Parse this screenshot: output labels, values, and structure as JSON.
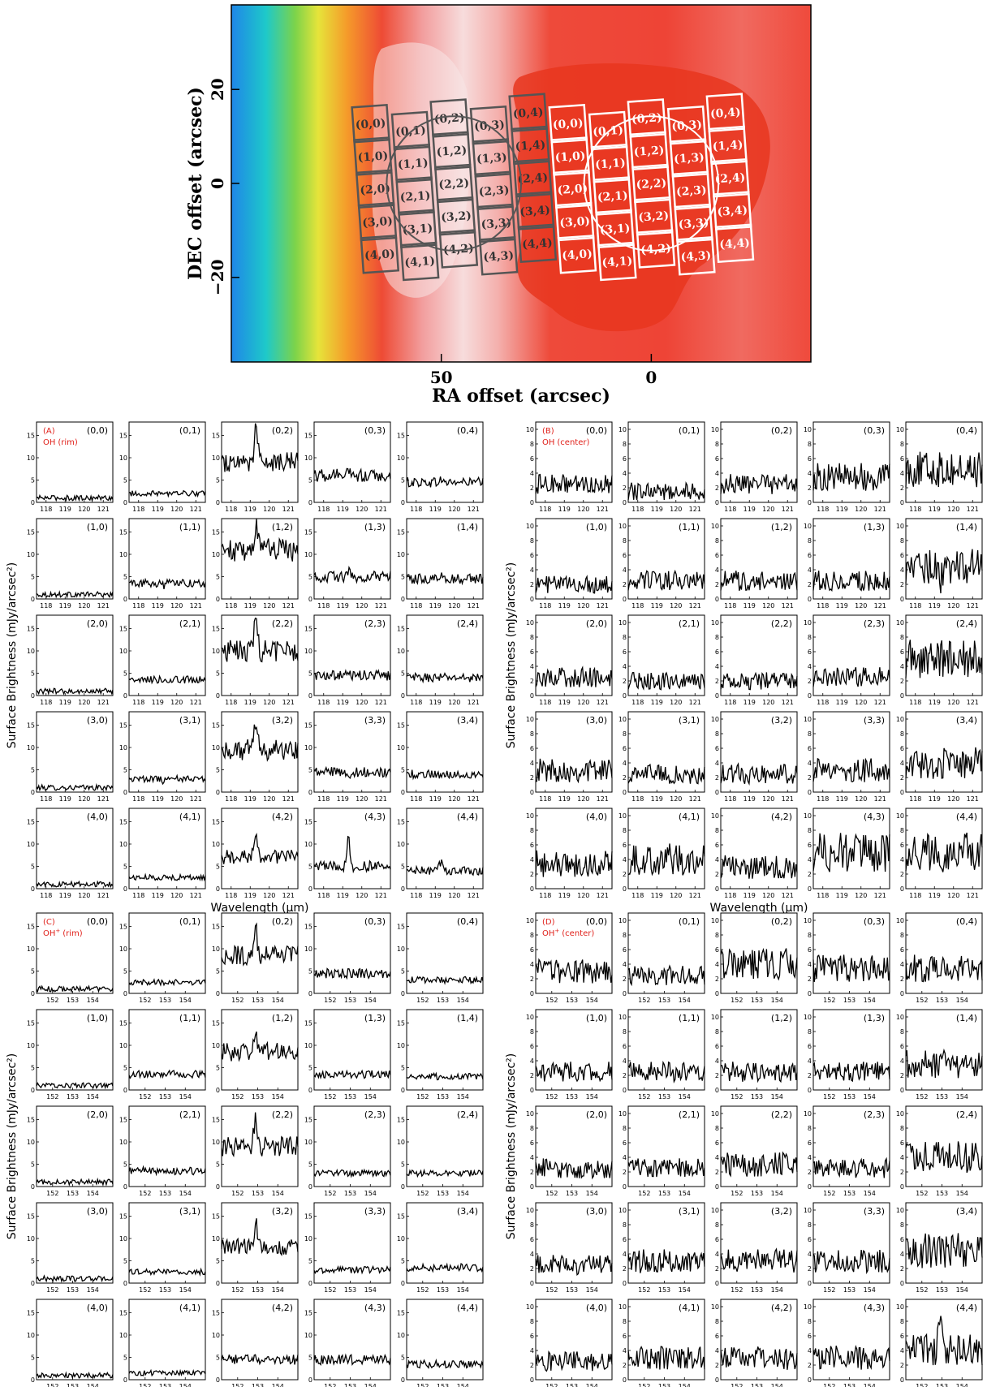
{
  "map": {
    "xlabel": "RA offset (arcsec)",
    "ylabel": "DEC offset (arcsec)",
    "xticks": [
      {
        "v": 50,
        "label": "50"
      },
      {
        "v": 0,
        "label": "0"
      }
    ],
    "yticks": [
      {
        "v": 20,
        "label": "20"
      },
      {
        "v": 0,
        "label": "0"
      },
      {
        "v": -20,
        "label": "−20"
      }
    ],
    "xlim": [
      100,
      -38
    ],
    "ylim": [
      -38,
      38
    ],
    "footprints": [
      {
        "name": "rim",
        "color": "#555555",
        "center_ra": 47,
        "center_dec": 0
      },
      {
        "name": "center",
        "color": "#ffffff",
        "center_ra": 0,
        "center_dec": 0
      }
    ],
    "spaxel_labels": [
      [
        "(0,0)",
        "(0,1)",
        "(0,2)",
        "(0,3)",
        "(0,4)"
      ],
      [
        "(1,0)",
        "(1,1)",
        "(1,2)",
        "(1,3)",
        "(1,4)"
      ],
      [
        "(2,0)",
        "(2,1)",
        "(2,2)",
        "(2,3)",
        "(2,4)"
      ],
      [
        "(3,0)",
        "(3,1)",
        "(3,2)",
        "(3,3)",
        "(3,4)"
      ],
      [
        "(4,0)",
        "(4,1)",
        "(4,2)",
        "(4,3)",
        "(4,4)"
      ]
    ]
  },
  "panels": [
    {
      "id": "A",
      "tag": "(A)",
      "line": "OH",
      "sup": "",
      "region": "(rim)",
      "xlabel": "Wavelength (μm)",
      "ylabel": "Surface Brightness (mJy/arcsec²)",
      "xlim": [
        117.5,
        121.5
      ],
      "xticks": [
        118,
        119,
        120,
        121
      ],
      "ylim": [
        0,
        18
      ],
      "yticks": [
        0,
        5,
        10,
        15
      ],
      "line_center": 119.3
    },
    {
      "id": "B",
      "tag": "(B)",
      "line": "OH",
      "sup": "",
      "region": "(center)",
      "xlabel": "Wavelength (μm)",
      "ylabel": "Surface Brightness (mJy/arcsec²)",
      "xlim": [
        117.5,
        121.5
      ],
      "xticks": [
        118,
        119,
        120,
        121
      ],
      "ylim": [
        0,
        11
      ],
      "yticks": [
        0,
        2,
        4,
        6,
        8,
        10
      ],
      "line_center": 119.3
    },
    {
      "id": "C",
      "tag": "(C)",
      "line": "OH",
      "sup": "+",
      "region": "(rim)",
      "xlabel": "Wavelength (μm)",
      "ylabel": "Surface Brightness (mJy/arcsec²)",
      "xlim": [
        151.2,
        155.0
      ],
      "xticks": [
        152,
        153,
        154
      ],
      "ylim": [
        0,
        18
      ],
      "yticks": [
        0,
        5,
        10,
        15
      ],
      "line_center": 152.9
    },
    {
      "id": "D",
      "tag": "(D)",
      "line": "OH",
      "sup": "+",
      "region": "(center)",
      "xlabel": "Wavelength (μm)",
      "ylabel": "Surface Brightness (mJy/arcsec²)",
      "xlim": [
        151.2,
        155.0
      ],
      "xticks": [
        152,
        153,
        154
      ],
      "ylim": [
        0,
        11
      ],
      "yticks": [
        0,
        2,
        4,
        6,
        8,
        10
      ],
      "line_center": 152.9
    }
  ],
  "chart_data": [
    {
      "type": "heatmap",
      "description_source": "false-colour map with two PACS 5x5 spaxel footprints",
      "xlabel": "RA offset (arcsec)",
      "ylabel": "DEC offset (arcsec)",
      "xlim": [
        100,
        -38
      ],
      "ylim": [
        -38,
        38
      ]
    },
    {
      "type": "line",
      "panel": "A",
      "xlabel": "Wavelength (μm)",
      "ylabel": "Surface Brightness (mJy/arcsec²)",
      "ylim": [
        0,
        18
      ],
      "continuum": [
        [
          1.0,
          2.0,
          9.0,
          6.0,
          4.5
        ],
        [
          1.0,
          3.5,
          11.0,
          5.0,
          4.5
        ],
        [
          1.0,
          3.5,
          10.0,
          4.5,
          4.0
        ],
        [
          1.0,
          3.0,
          9.5,
          4.5,
          4.0
        ],
        [
          1.0,
          2.5,
          7.0,
          5.0,
          4.0
        ]
      ],
      "peak": [
        [
          1.0,
          2.0,
          18.0,
          7.0,
          5.0
        ],
        [
          1.0,
          3.0,
          17.0,
          6.0,
          5.0
        ],
        [
          1.0,
          3.0,
          17.0,
          4.5,
          4.0
        ],
        [
          1.0,
          2.5,
          16.0,
          4.0,
          4.0
        ],
        [
          1.0,
          2.5,
          11.0,
          11.0,
          6.0
        ]
      ]
    },
    {
      "type": "line",
      "panel": "B",
      "xlabel": "Wavelength (μm)",
      "ylabel": "Surface Brightness (mJy/arcsec²)",
      "ylim": [
        0,
        11
      ],
      "continuum": [
        [
          2.5,
          1.5,
          2.5,
          3.5,
          4.5
        ],
        [
          2.0,
          2.5,
          2.5,
          2.5,
          4.5
        ],
        [
          2.5,
          2.0,
          2.0,
          2.5,
          5.0
        ],
        [
          3.0,
          2.5,
          2.5,
          3.0,
          4.0
        ],
        [
          3.5,
          4.0,
          3.0,
          5.0,
          5.0
        ]
      ],
      "peak": [
        [
          0,
          0,
          0,
          0,
          0
        ],
        [
          0,
          0,
          0,
          0,
          2.0
        ],
        [
          0,
          0,
          0,
          0,
          0
        ],
        [
          0,
          0,
          0,
          0,
          0
        ],
        [
          0,
          0,
          0,
          0,
          0
        ]
      ]
    },
    {
      "type": "line",
      "panel": "C",
      "xlabel": "Wavelength (μm)",
      "ylabel": "Surface Brightness (mJy/arcsec²)",
      "ylim": [
        0,
        18
      ],
      "continuum": [
        [
          1.0,
          2.5,
          8.5,
          4.5,
          3.0
        ],
        [
          1.0,
          3.5,
          8.5,
          3.5,
          3.0
        ],
        [
          1.0,
          3.5,
          9.0,
          3.0,
          3.0
        ],
        [
          1.0,
          2.5,
          8.0,
          3.0,
          3.5
        ],
        [
          1.0,
          1.5,
          4.5,
          4.5,
          3.5
        ]
      ],
      "peak": [
        [
          0,
          0,
          14.0,
          0,
          0
        ],
        [
          0,
          0,
          13.0,
          0,
          0
        ],
        [
          0,
          0,
          15.0,
          0,
          0
        ],
        [
          0,
          0,
          13.5,
          0,
          0
        ],
        [
          0,
          0,
          0,
          0,
          0
        ]
      ]
    },
    {
      "type": "line",
      "panel": "D",
      "xlabel": "Wavelength (μm)",
      "ylabel": "Surface Brightness (mJy/arcsec²)",
      "ylim": [
        0,
        11
      ],
      "continuum": [
        [
          3.0,
          2.5,
          4.0,
          3.5,
          3.5
        ],
        [
          2.5,
          2.5,
          2.5,
          2.5,
          3.5
        ],
        [
          2.5,
          2.5,
          3.0,
          2.5,
          4.0
        ],
        [
          2.5,
          3.0,
          3.0,
          3.0,
          4.5
        ],
        [
          2.5,
          3.0,
          3.0,
          3.0,
          4.0
        ]
      ],
      "peak": [
        [
          0,
          0,
          0,
          0,
          0
        ],
        [
          0,
          0,
          0,
          0,
          0
        ],
        [
          0,
          0,
          0,
          0,
          0
        ],
        [
          0,
          0,
          0,
          0,
          0
        ],
        [
          0,
          0,
          0,
          0,
          8.0
        ]
      ]
    }
  ]
}
